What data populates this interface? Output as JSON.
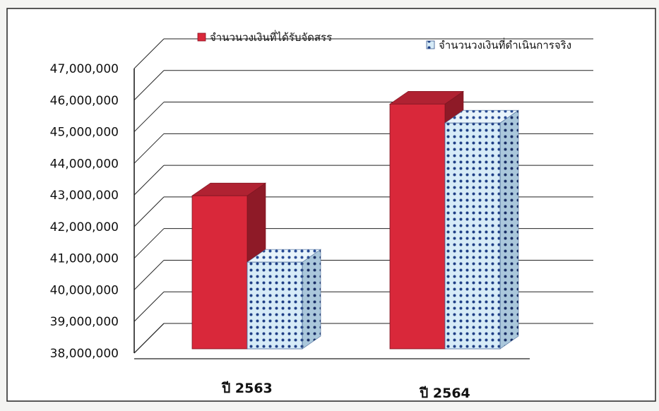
{
  "chart_data": {
    "type": "bar",
    "categories": [
      "ปี 2563",
      "ปี 2564"
    ],
    "series": [
      {
        "name": "จำนวนวงเงินที่ได้รับจัดสรร",
        "values": [
          43200000,
          46100000
        ],
        "color": "#d9283a",
        "pattern": "solid"
      },
      {
        "name": "จำนวนวงเงินที่ดำเนินการจริง",
        "values": [
          41100000,
          45500000
        ],
        "color": "#cfe6f3",
        "pattern": "dotted-blue"
      }
    ],
    "yticks": [
      "38,000,000",
      "39,000,000",
      "40,000,000",
      "41,000,000",
      "42,000,000",
      "43,000,000",
      "44,000,000",
      "45,000,000",
      "46,000,000",
      "47,000,000"
    ],
    "ylim": [
      38000000,
      47000000
    ],
    "grid": true,
    "legend_position": "top-right",
    "three_d": true
  }
}
